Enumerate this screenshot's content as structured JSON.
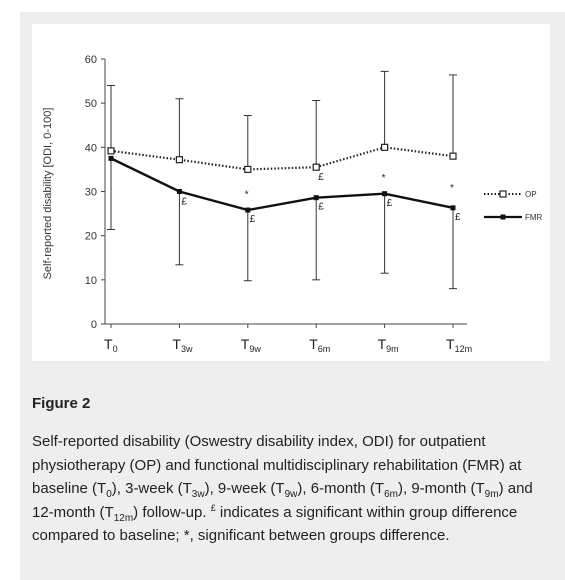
{
  "chart_data": {
    "type": "line",
    "categories": [
      {
        "main": "T",
        "sub": "0"
      },
      {
        "main": "T",
        "sub": "3w"
      },
      {
        "main": "T",
        "sub": "9w"
      },
      {
        "main": "T",
        "sub": "6m"
      },
      {
        "main": "T",
        "sub": "9m"
      },
      {
        "main": "T",
        "sub": "12m"
      }
    ],
    "ylabel": "Self-reported disability [ODI, 0-100]",
    "ylim": [
      0,
      60
    ],
    "yticks": [
      0,
      10,
      20,
      30,
      40,
      50,
      60
    ],
    "grid": false,
    "legend_position": "right",
    "series": [
      {
        "name": "OP",
        "style": "dotted",
        "marker": "open-square",
        "color": "#222222",
        "values": [
          39.2,
          37.2,
          35.0,
          35.5,
          40.0,
          38.0
        ],
        "error_upper": [
          54,
          51,
          47.2,
          50.6,
          57.2,
          56.4
        ]
      },
      {
        "name": "FMR",
        "style": "solid",
        "marker": "filled-square",
        "color": "#111111",
        "values": [
          37.5,
          30.0,
          25.8,
          28.6,
          29.5,
          26.3
        ],
        "error_lower": [
          21.4,
          13.4,
          9.8,
          10.0,
          11.5,
          8.0
        ]
      }
    ],
    "annotations": [
      {
        "text": "£",
        "category_index": 1,
        "y": 28.0
      },
      {
        "text": "£",
        "category_index": 2,
        "y": 24.0
      },
      {
        "text": "£",
        "category_index": 3,
        "y": 33.5
      },
      {
        "text": "£",
        "category_index": 3,
        "y": 26.8
      },
      {
        "text": "£",
        "category_index": 4,
        "y": 27.6
      },
      {
        "text": "£",
        "category_index": 5,
        "y": 24.4
      },
      {
        "text": "*",
        "category_index": 2,
        "y": 29.5
      },
      {
        "text": "*",
        "category_index": 4,
        "y": 33.3
      },
      {
        "text": "*",
        "category_index": 5,
        "y": 31.0
      }
    ]
  },
  "caption": {
    "title": "Figure 2",
    "text_html": "Self-reported disability (Oswestry disability index, ODI) for outpatient physiotherapy (OP) and functional multidisciplinary rehabilitation (FMR) at baseline (T<sub>0</sub>), 3-week (T<sub>3w</sub>), 9-week (T<sub>9w</sub>), 6-month (T<sub>6m</sub>), 9-month (T<sub>9m</sub>) and 12-month (T<sub>12m</sub>) follow-up. <sup>£</sup> indicates a significant within group difference compared to baseline; *, significant between groups difference."
  }
}
